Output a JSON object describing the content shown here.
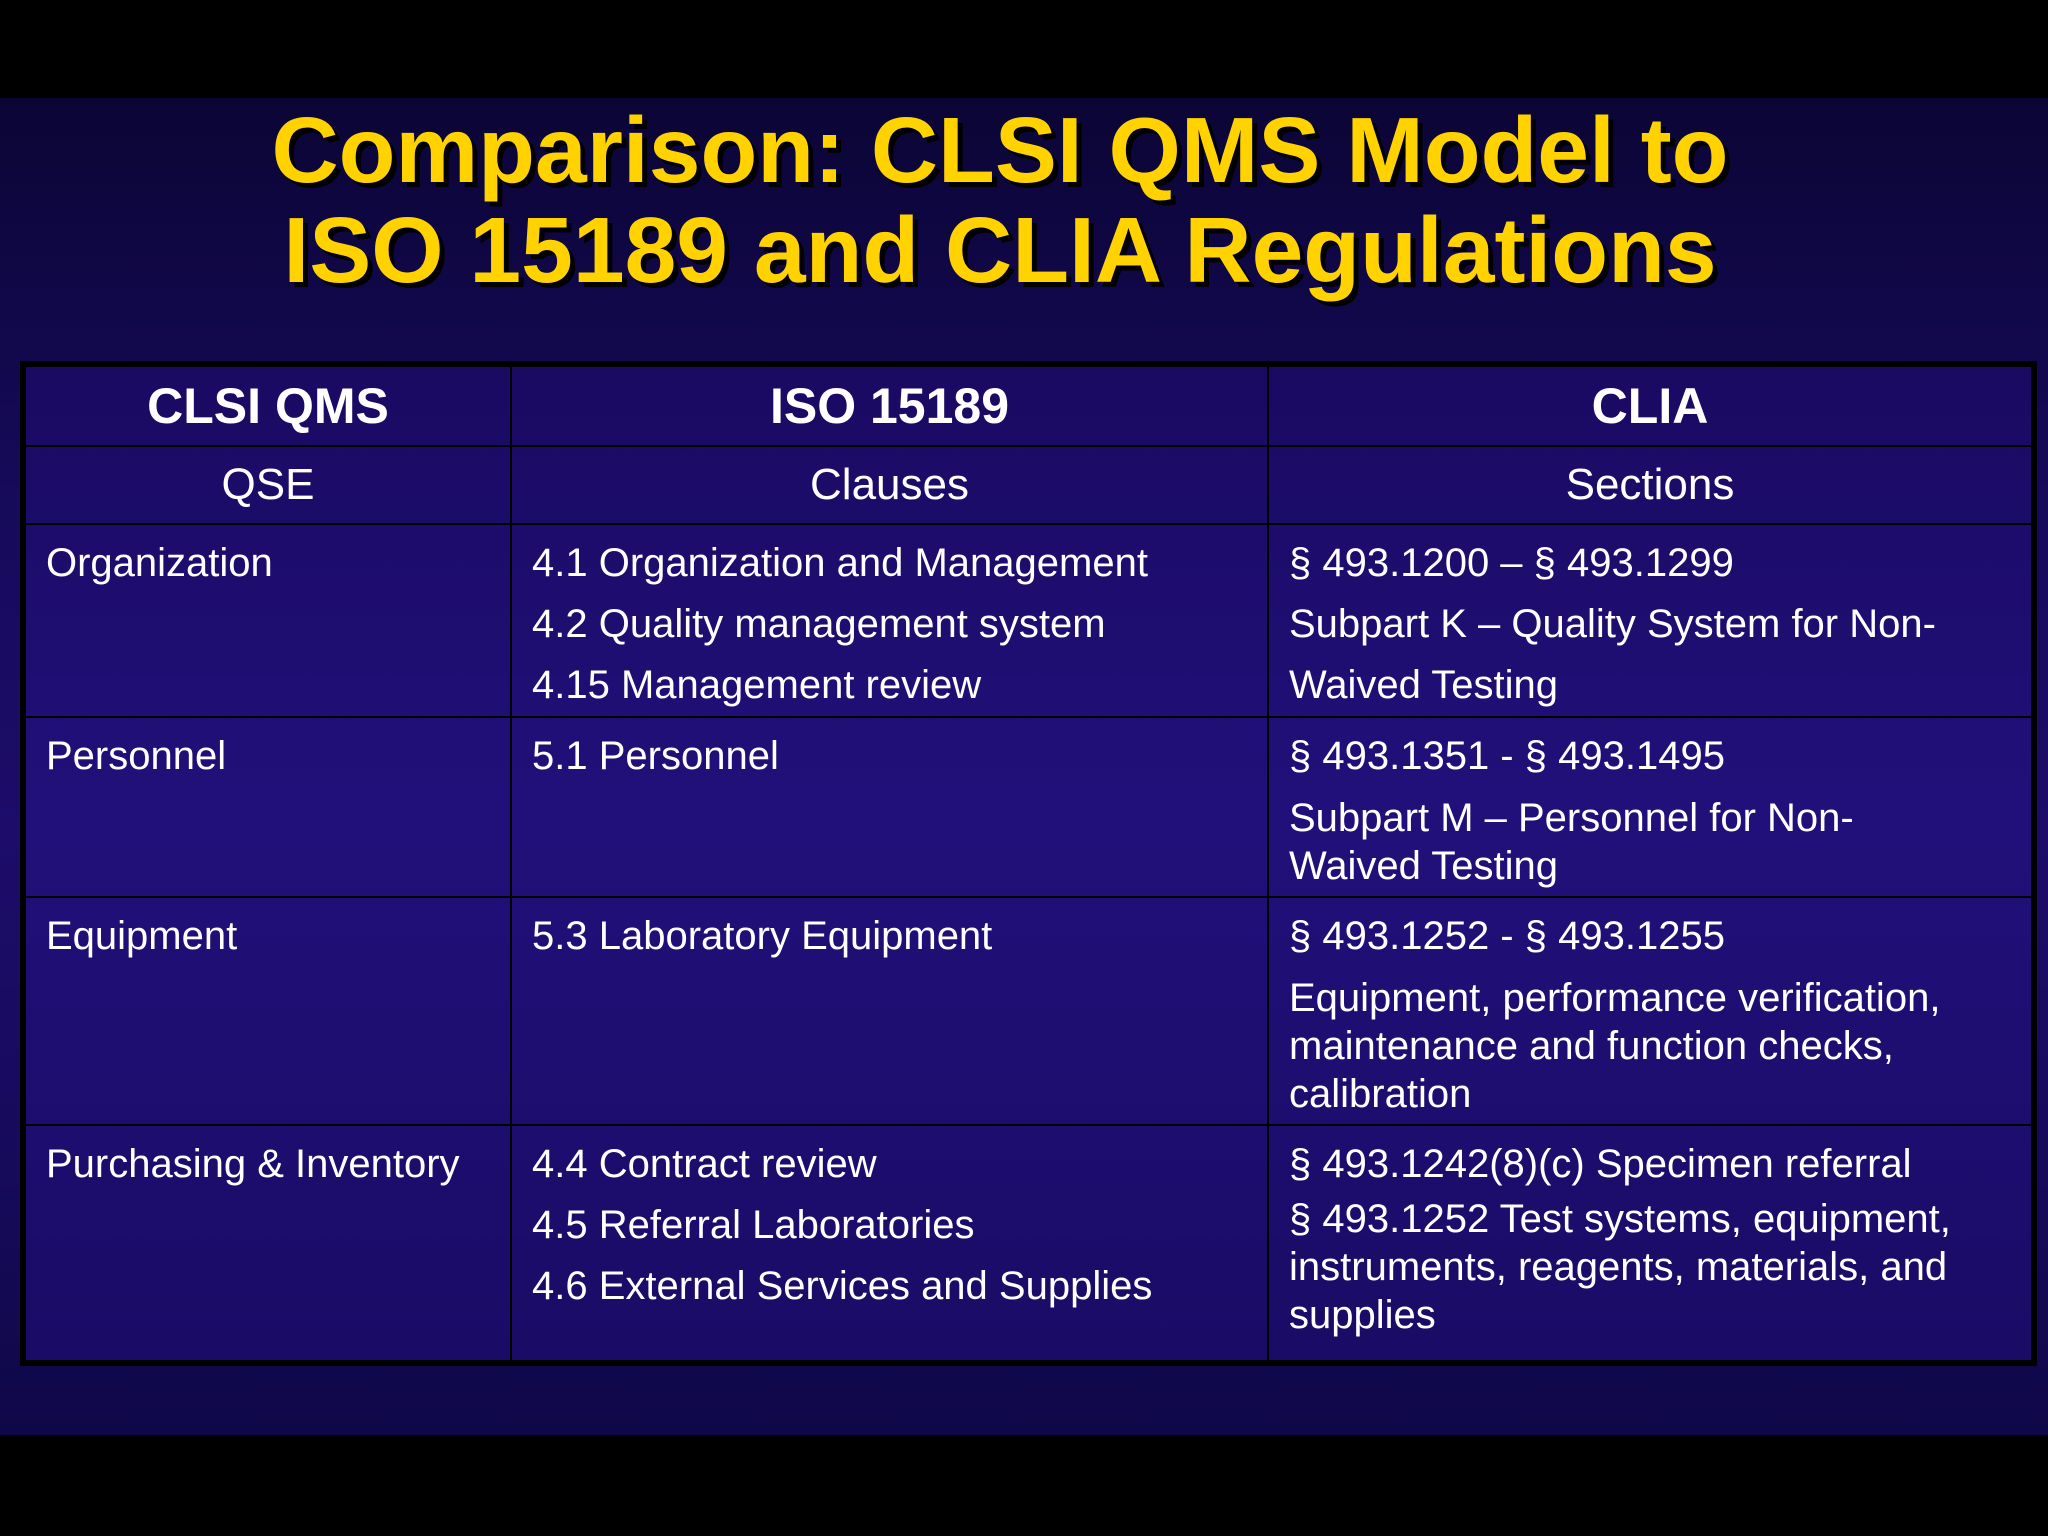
{
  "title": {
    "line1": "Comparison: CLSI QMS Model to",
    "line2": "ISO 15189 and CLIA Regulations"
  },
  "table": {
    "headers": [
      "CLSI QMS",
      "ISO 15189",
      "CLIA"
    ],
    "subheaders": [
      "QSE",
      "Clauses",
      "Sections"
    ],
    "rows": [
      {
        "qse": "Organization",
        "clauses": [
          "4.1  Organization and Management",
          "4.2 Quality management system",
          "4.15 Management review"
        ],
        "sections": [
          "§ 493.1200 – § 493.1299",
          "Subpart K – Quality System for Non-",
          "Waived Testing"
        ]
      },
      {
        "qse": "Personnel",
        "clauses": [
          "5.1  Personnel"
        ],
        "sections": [
          "§ 493.1351 - § 493.1495",
          "Subpart M – Personnel for Non-Waived Testing"
        ]
      },
      {
        "qse": "Equipment",
        "clauses": [
          "5.3  Laboratory Equipment"
        ],
        "sections": [
          "§ 493.1252 - § 493.1255",
          "Equipment, performance verification, maintenance and function checks, calibration"
        ]
      },
      {
        "qse": "Purchasing & Inventory",
        "clauses": [
          "4.4 Contract review",
          "4.5  Referral Laboratories",
          "4.6  External Services and Supplies"
        ],
        "sections": [
          "§ 493.1242(8)(c) Specimen referral",
          "§ 493.1252  Test systems, equipment, instruments, reagents, materials, and supplies"
        ]
      }
    ]
  }
}
